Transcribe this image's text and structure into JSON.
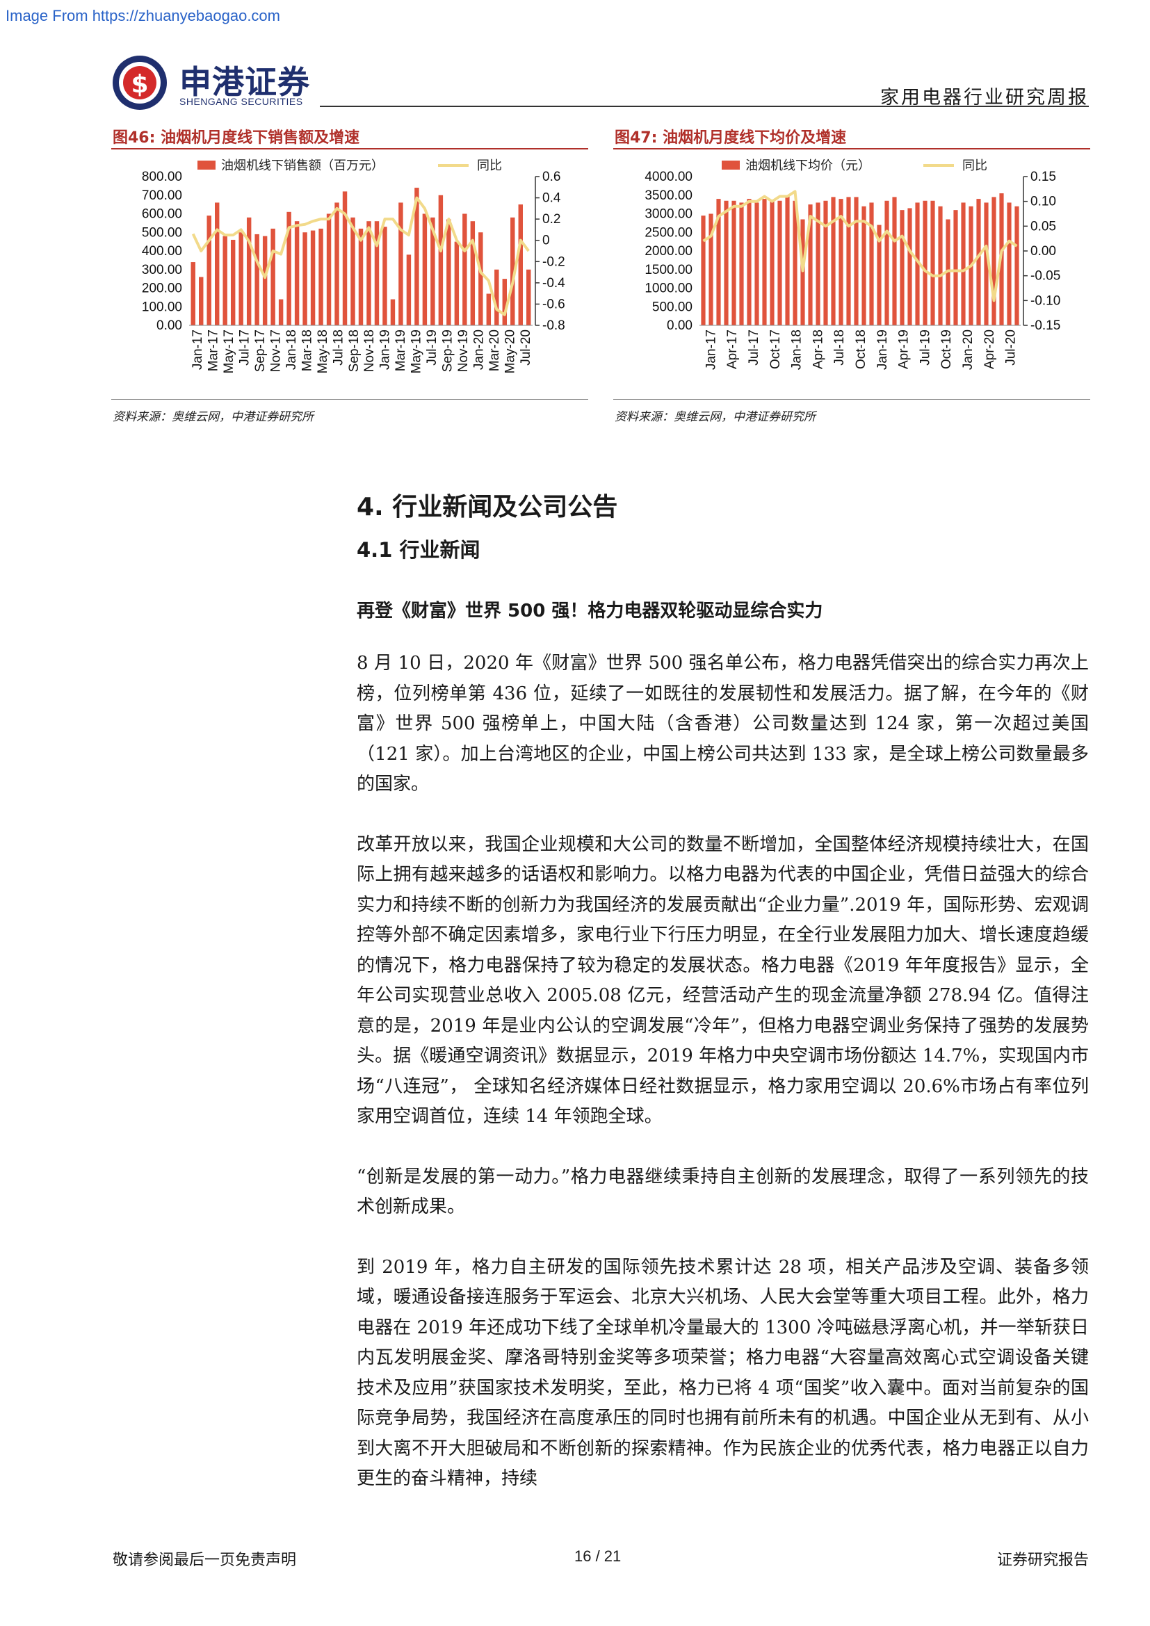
{
  "watermark": "Image From https://zhuanyebaogao.com",
  "logo": {
    "cn": "申港证券",
    "en": "SHENGANG SECURITIES"
  },
  "header": {
    "report_type": "家用电器行业研究周报"
  },
  "colors": {
    "bar": "#e0533c",
    "line": "#f2da8a",
    "fig_title": "#b0302a",
    "brand": "#1f2f6e"
  },
  "figures": [
    {
      "title": "图46:  油烟机月度线下销售额及增速",
      "source": "资料来源：奥维云网，中港证券研究所"
    },
    {
      "title": "图47:  油烟机月度线下均价及增速",
      "source": "资料来源：奥维云网，中港证券研究所"
    }
  ],
  "chart_data": [
    {
      "type": "bar",
      "bar_series_name": "油烟机线下销售额（百万元）",
      "line_series_name": "同比",
      "x_ticks": [
        "Jan-17",
        "Mar-17",
        "May-17",
        "Jul-17",
        "Sep-17",
        "Nov-17",
        "Jan-18",
        "Mar-18",
        "May-18",
        "Jul-18",
        "Sep-18",
        "Nov-18",
        "Jan-19",
        "Mar-19",
        "May-19",
        "Jul-19",
        "Sep-19",
        "Nov-19",
        "Jan-20",
        "Mar-20",
        "May-20",
        "Jul-20"
      ],
      "y_ticks": [
        "800.00",
        "700.00",
        "600.00",
        "500.00",
        "400.00",
        "300.00",
        "200.00",
        "100.00",
        "0.00"
      ],
      "y2_ticks": [
        "0.6",
        "0.4",
        "0.2",
        "0",
        "-0.2",
        "-0.4",
        "-0.6",
        "-0.8"
      ],
      "ylim": [
        0,
        800
      ],
      "y2lim": [
        -0.8,
        0.6
      ],
      "values": [
        340,
        260,
        590,
        660,
        480,
        460,
        500,
        580,
        490,
        480,
        520,
        140,
        610,
        560,
        500,
        510,
        520,
        600,
        660,
        720,
        580,
        520,
        560,
        560,
        530,
        140,
        660,
        380,
        740,
        600,
        580,
        700,
        570,
        450,
        600,
        560,
        500,
        170,
        300,
        250,
        580,
        650,
        300
      ],
      "yoy": [
        0.06,
        -0.1,
        0.0,
        0.1,
        0.05,
        0.05,
        0.1,
        -0.01,
        -0.2,
        -0.35,
        -0.1,
        -0.13,
        0.12,
        0.14,
        0.15,
        0.18,
        0.2,
        0.2,
        0.3,
        0.25,
        0.12,
        0.0,
        0.12,
        -0.05,
        0.2,
        0.2,
        0.1,
        0.05,
        0.4,
        0.3,
        0.1,
        -0.1,
        0.2,
        0.0,
        -0.1,
        0.0,
        -0.3,
        -0.38,
        -0.65,
        -0.7,
        -0.4,
        0.0,
        -0.1
      ]
    },
    {
      "type": "bar",
      "bar_series_name": "油烟机线下均价（元）",
      "line_series_name": "同比",
      "x_ticks": [
        "Jan-17",
        "Apr-17",
        "Jul-17",
        "Oct-17",
        "Jan-18",
        "Apr-18",
        "Jul-18",
        "Oct-18",
        "Jan-19",
        "Apr-19",
        "Jul-19",
        "Oct-19",
        "Jan-20",
        "Apr-20",
        "Jul-20"
      ],
      "y_ticks": [
        "4000.00",
        "3500.00",
        "3000.00",
        "2500.00",
        "2000.00",
        "1500.00",
        "1000.00",
        "500.00",
        "0.00"
      ],
      "y2_ticks": [
        "0.15",
        "0.10",
        "0.05",
        "0.00",
        "-0.05",
        "-0.10",
        "-0.15"
      ],
      "ylim": [
        0,
        4000
      ],
      "y2lim": [
        -0.15,
        0.15
      ],
      "values": [
        2950,
        3000,
        3400,
        3350,
        3350,
        3300,
        3400,
        3300,
        3400,
        3350,
        3350,
        3500,
        3350,
        2850,
        3250,
        3300,
        3350,
        3450,
        3400,
        3450,
        3450,
        3200,
        3300,
        2700,
        3350,
        3450,
        3100,
        3150,
        3300,
        3350,
        3350,
        3200,
        2850,
        3100,
        3300,
        3200,
        3400,
        3300,
        3450,
        3550,
        3300,
        3200
      ],
      "yoy": [
        0.02,
        0.03,
        0.07,
        0.08,
        0.09,
        0.09,
        0.1,
        0.1,
        0.11,
        0.1,
        0.11,
        0.11,
        0.12,
        -0.04,
        0.07,
        0.06,
        0.05,
        0.06,
        0.07,
        0.05,
        0.06,
        0.06,
        0.05,
        0.02,
        0.04,
        0.02,
        0.03,
        0.0,
        -0.02,
        -0.04,
        -0.05,
        -0.05,
        -0.04,
        -0.04,
        -0.04,
        -0.03,
        -0.01,
        0.01,
        -0.1,
        0.0,
        0.02,
        0.01
      ]
    }
  ],
  "section": {
    "h1": "4. 行业新闻及公司公告",
    "h2": "4.1 行业新闻"
  },
  "news": {
    "title": "再登《财富》世界 500 强！格力电器双轮驱动显综合实力",
    "paragraphs": [
      "8 月 10 日，2020 年《财富》世界 500 强名单公布，格力电器凭借突出的综合实力再次上榜，位列榜单第 436 位，延续了一如既往的发展韧性和发展活力。据了解，在今年的《财富》世界 500 强榜单上，中国大陆（含香港）公司数量达到 124 家，第一次超过美国（121 家）。加上台湾地区的企业，中国上榜公司共达到 133 家，是全球上榜公司数量最多的国家。",
      "改革开放以来，我国企业规模和大公司的数量不断增加，全国整体经济规模持续壮大，在国际上拥有越来越多的话语权和影响力。以格力电器为代表的中国企业，凭借日益强大的综合实力和持续不断的创新力为我国经济的发展贡献出“企业力量”.2019 年，国际形势、宏观调控等外部不确定因素增多，家电行业下行压力明显，在全行业发展阻力加大、增长速度趋缓的情况下，格力电器保持了较为稳定的发展状态。格力电器《2019 年年度报告》显示，全年公司实现营业总收入 2005.08 亿元，经营活动产生的现金流量净额 278.94 亿。值得注意的是，2019 年是业内公认的空调发展“冷年”，但格力电器空调业务保持了强势的发展势头。据《暖通空调资讯》数据显示，2019 年格力中央空调市场份额达 14.7%，实现国内市场“八连冠”， 全球知名经济媒体日经社数据显示，格力家用空调以 20.6%市场占有率位列家用空调首位，连续 14 年领跑全球。",
      "“创新是发展的第一动力。”格力电器继续秉持自主创新的发展理念，取得了一系列领先的技术创新成果。",
      "到 2019 年，格力自主研发的国际领先技术累计达 28 项，相关产品涉及空调、装备多领域，暖通设备接连服务于军运会、北京大兴机场、人民大会堂等重大项目工程。此外，格力电器在 2019 年还成功下线了全球单机冷量最大的 1300 冷吨磁悬浮离心机，并一举斩获日内瓦发明展金奖、摩洛哥特别金奖等多项荣誉；格力电器“大容量高效离心式空调设备关键技术及应用”获国家技术发明奖，至此，格力已将 4 项“国奖”收入囊中。面对当前复杂的国际竞争局势，我国经济在高度承压的同时也拥有前所未有的机遇。中国企业从无到有、从小到大离不开大胆破局和不断创新的探索精神。作为民族企业的优秀代表，格力电器正以自力更生的奋斗精神，持续"
    ]
  },
  "footer": {
    "left": "敬请参阅最后一页免责声明",
    "page": "16 / 21",
    "right": "证券研究报告"
  }
}
